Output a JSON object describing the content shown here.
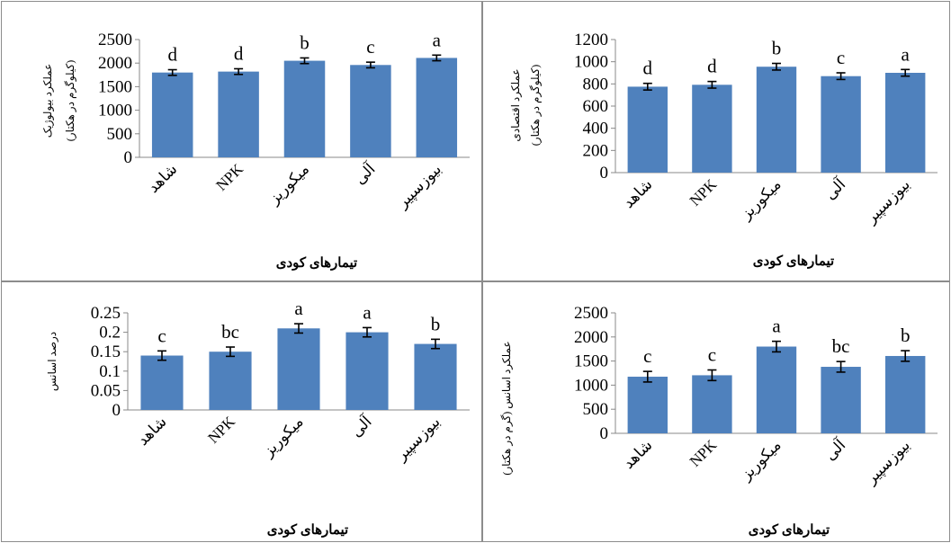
{
  "chart_data": [
    {
      "type": "bar",
      "categories": [
        "شاهد",
        "NPK",
        "میکوریز",
        "آلی",
        "بیوزسپیر"
      ],
      "values": [
        1800,
        1820,
        2050,
        1960,
        2110
      ],
      "errors": [
        60,
        60,
        60,
        60,
        60
      ],
      "letters": [
        "d",
        "d",
        "b",
        "c",
        "a"
      ],
      "xlabel": "تیمارهای کودی",
      "ylabel": "عملکرد بیولوژیک",
      "ylabel_unit": "(کیلوگرم در هکتار)",
      "ylim": [
        0,
        2500
      ],
      "yticks": [
        0,
        500,
        1000,
        1500,
        2000,
        2500
      ],
      "bar_color": "#4f81bd",
      "grid": false
    },
    {
      "type": "bar",
      "categories": [
        "شاهد",
        "NPK",
        "میکوریز",
        "آلی",
        "بیوزسپیر"
      ],
      "values": [
        775,
        792,
        955,
        870,
        900
      ],
      "errors": [
        30,
        30,
        30,
        30,
        30
      ],
      "letters": [
        "d",
        "d",
        "b",
        "c",
        "a"
      ],
      "xlabel": "تیمارهای کودی",
      "ylabel": "عملکرد اقتصادی",
      "ylabel_unit": "(کیلوگرم در هکتار)",
      "ylim": [
        0,
        1200
      ],
      "yticks": [
        0,
        200,
        400,
        600,
        800,
        1000,
        1200
      ],
      "bar_color": "#4f81bd",
      "grid": false
    },
    {
      "type": "bar",
      "categories": [
        "شاهد",
        "NPK",
        "میکوریز",
        "آلی",
        "بیوزسپیر"
      ],
      "values": [
        0.14,
        0.15,
        0.21,
        0.2,
        0.17
      ],
      "errors": [
        0.012,
        0.012,
        0.012,
        0.012,
        0.012
      ],
      "letters": [
        "c",
        "bc",
        "a",
        "a",
        "b"
      ],
      "xlabel": "تیمارهای کودی",
      "ylabel": "درصد اسانس",
      "ylabel_unit": "",
      "ylim": [
        0,
        0.25
      ],
      "yticks": [
        0,
        0.05,
        0.1,
        0.15,
        0.2,
        0.25
      ],
      "bar_color": "#4f81bd",
      "grid": false
    },
    {
      "type": "bar",
      "categories": [
        "شاهد",
        "NPK",
        "میکوریز",
        "آلی",
        "بیوزسپیر"
      ],
      "values": [
        1175,
        1205,
        1800,
        1380,
        1605
      ],
      "errors": [
        110,
        110,
        110,
        110,
        110
      ],
      "letters": [
        "c",
        "c",
        "a",
        "bc",
        "b"
      ],
      "xlabel": "تیمارهای کودی",
      "ylabel": "عملکرد اسانس (گرم در هکتار)",
      "ylabel_unit": "",
      "ylim": [
        0,
        2500
      ],
      "yticks": [
        0,
        500,
        1000,
        1500,
        2000,
        2500
      ],
      "bar_color": "#4f81bd",
      "grid": false
    }
  ]
}
